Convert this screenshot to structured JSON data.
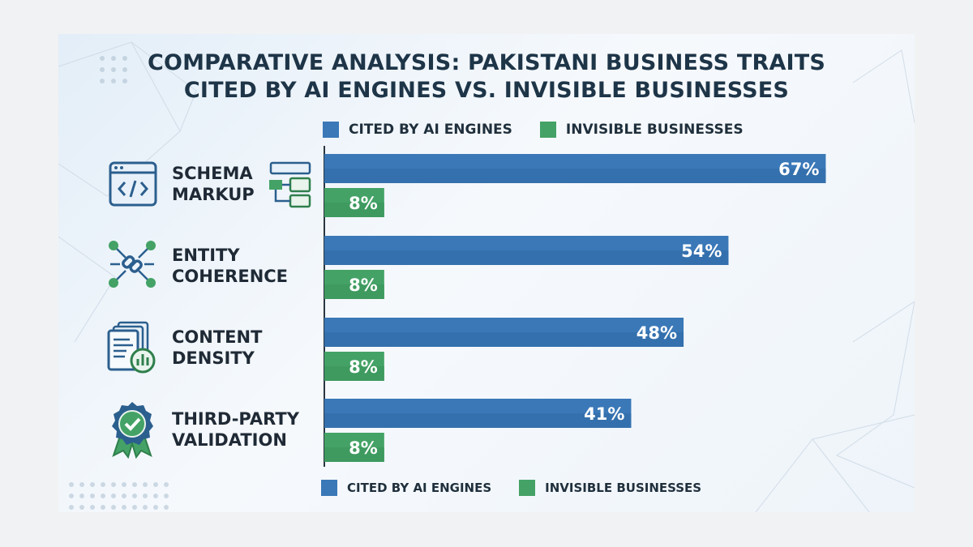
{
  "chart_data": {
    "type": "bar",
    "orientation": "horizontal",
    "title_lines": [
      "COMPARATIVE ANALYSIS: PAKISTANI BUSINESS TRAITS",
      "CITED BY AI ENGINES VS. INVISIBLE BUSINESSES"
    ],
    "categories": [
      {
        "lines": [
          "SCHEMA",
          "MARKUP"
        ],
        "icon": "code-window-icon"
      },
      {
        "lines": [
          "ENTITY",
          "COHERENCE"
        ],
        "icon": "chain-link-network-icon"
      },
      {
        "lines": [
          "CONTENT",
          "DENSITY"
        ],
        "icon": "document-chart-icon"
      },
      {
        "lines": [
          "THIRD-PARTY",
          "VALIDATION"
        ],
        "icon": "badge-checkmark-icon"
      }
    ],
    "series": [
      {
        "name": "CITED BY AI ENGINES",
        "color": "#3a78b8",
        "values": [
          67,
          54,
          48,
          41
        ],
        "labels": [
          "67%",
          "54%",
          "48%",
          "41%"
        ]
      },
      {
        "name": "INVISIBLE BUSINESSES",
        "color": "#44a266",
        "values": [
          8,
          8,
          8,
          8
        ],
        "labels": [
          "8%",
          "8%",
          "8%",
          "8%"
        ]
      }
    ],
    "xlim": [
      0,
      100
    ],
    "grid": false,
    "legend_placement": "top and bottom"
  }
}
